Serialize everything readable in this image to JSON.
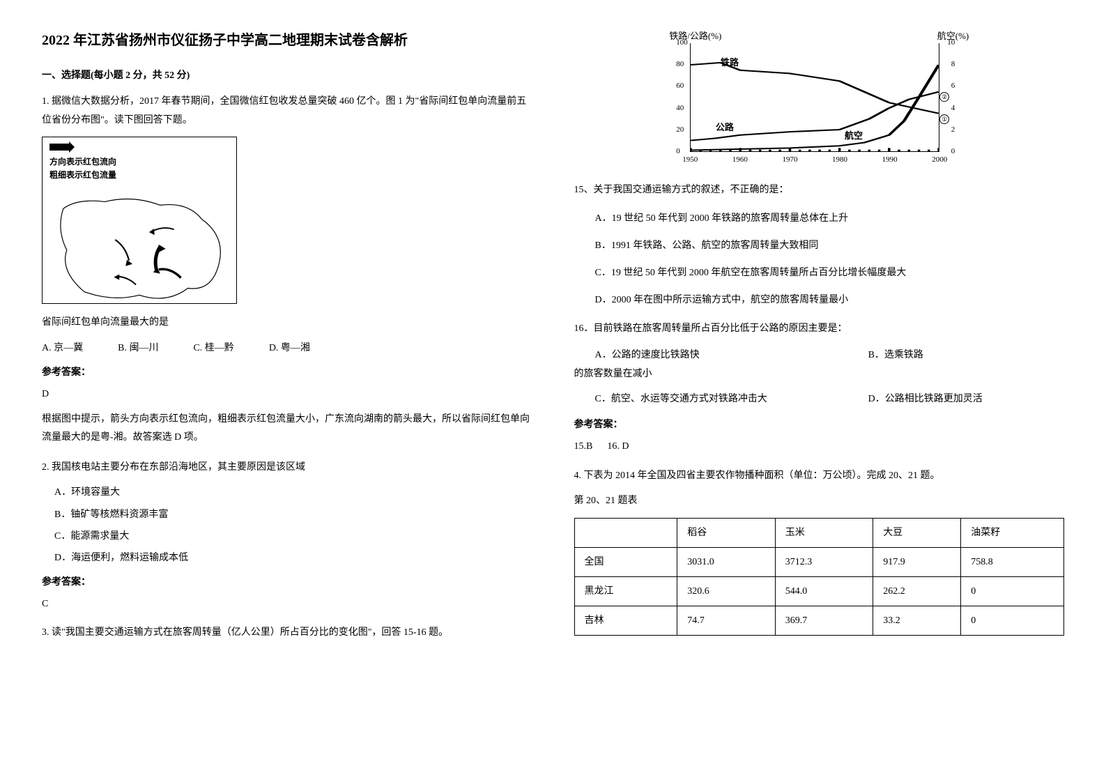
{
  "title": "2022 年江苏省扬州市仪征扬子中学高二地理期末试卷含解析",
  "section1_heading": "一、选择题(每小题 2 分，共 52 分)",
  "q1": {
    "stem": "1. 据微信大数据分析，2017 年春节期间，全国微信红包收发总量突破 460 亿个。图 1 为\"省际间红包单向流量前五位省份分布图\"。读下图回答下题。",
    "map_legend1": "方向表示红包流向",
    "map_legend2": "粗细表示红包流量",
    "sub": "省际间红包单向流量最大的是",
    "options": {
      "A": "A. 京—冀",
      "B": "B. 闽—川",
      "C": "C. 桂—黔",
      "D": "D. 粤—湘"
    },
    "ref": "参考答案：",
    "answer": "D",
    "explain": "根据图中提示，箭头方向表示红包流向，粗细表示红包流量大小，广东流向湖南的箭头最大，所以省际间红包单向流量最大的是粤-湘。故答案选 D 项。"
  },
  "q2": {
    "stem": "2. 我国核电站主要分布在东部沿海地区，其主要原因是该区域",
    "options": {
      "A": "A．环境容量大",
      "B": "B．铀矿等核燃料资源丰富",
      "C": "C．能源需求量大",
      "D": "D．海运便利，燃料运输成本低"
    },
    "ref": "参考答案：",
    "answer": "C"
  },
  "q3": {
    "stem": "3. 读\"我国主要交通运输方式在旅客周转量（亿人公里）所占百分比的变化图\"，回答 15-16 题。"
  },
  "chart": {
    "left_axis_label": "铁路/公路(%)",
    "right_axis_label": "航空(%)",
    "left_ticks": [
      {
        "v": 0,
        "pos": 100
      },
      {
        "v": 20,
        "pos": 80
      },
      {
        "v": 40,
        "pos": 60
      },
      {
        "v": 60,
        "pos": 40
      },
      {
        "v": 80,
        "pos": 20
      },
      {
        "v": 100,
        "pos": 0
      }
    ],
    "right_ticks": [
      {
        "v": 0,
        "pos": 100
      },
      {
        "v": 2,
        "pos": 80
      },
      {
        "v": 4,
        "pos": 60
      },
      {
        "v": 6,
        "pos": 40
      },
      {
        "v": 8,
        "pos": 20
      },
      {
        "v": 10,
        "pos": 0
      }
    ],
    "right_circles": [
      "②",
      "①"
    ],
    "x_ticks": [
      {
        "v": 1950,
        "pos": 0
      },
      {
        "v": 1960,
        "pos": 20
      },
      {
        "v": 1970,
        "pos": 40
      },
      {
        "v": 1980,
        "pos": 60
      },
      {
        "v": 1990,
        "pos": 80
      },
      {
        "v": 2000,
        "pos": 100
      }
    ],
    "series_labels": {
      "rail": "铁路",
      "road": "公路",
      "air": "航空"
    },
    "rail_points": [
      [
        0,
        20
      ],
      [
        12,
        18
      ],
      [
        20,
        25
      ],
      [
        40,
        28
      ],
      [
        60,
        35
      ],
      [
        70,
        45
      ],
      [
        80,
        55
      ],
      [
        90,
        60
      ],
      [
        100,
        65
      ]
    ],
    "road_points": [
      [
        0,
        90
      ],
      [
        10,
        88
      ],
      [
        20,
        85
      ],
      [
        40,
        82
      ],
      [
        60,
        80
      ],
      [
        72,
        70
      ],
      [
        80,
        60
      ],
      [
        88,
        52
      ],
      [
        100,
        45
      ]
    ],
    "air_points": [
      [
        0,
        99
      ],
      [
        20,
        98
      ],
      [
        40,
        97
      ],
      [
        60,
        95
      ],
      [
        70,
        92
      ],
      [
        80,
        85
      ],
      [
        86,
        72
      ],
      [
        92,
        50
      ],
      [
        100,
        20
      ]
    ]
  },
  "q15": {
    "stem": "15、关于我国交通运输方式的叙述，不正确的是：",
    "options": {
      "A": "A．19 世纪 50 年代到 2000 年铁路的旅客周转量总体在上升",
      "B": "B．1991 年铁路、公路、航空的旅客周转量大致相同",
      "C": "C．19 世纪 50 年代到 2000 年航空在旅客周转量所占百分比增长幅度最大",
      "D": "D．2000 年在图中所示运输方式中，航空的旅客周转量最小"
    }
  },
  "q16": {
    "stem": "16．目前铁路在旅客周转量所占百分比低于公路的原因主要是：",
    "A": "A．公路的速度比铁路快",
    "B": "B．选乘铁路",
    "B_cont": "的旅客数量在减小",
    "C": "C．航空、水运等交通方式对铁路冲击大",
    "D": "D．公路相比铁路更加灵活",
    "ref": "参考答案：",
    "answers": "15.B      16. D"
  },
  "q4": {
    "stem": "4. 下表为 2014 年全国及四省主要农作物播种面积（单位：万公顷）。完成 20、21 题。",
    "caption": "第 20、21 题表",
    "table": {
      "columns": [
        "",
        "稻谷",
        "玉米",
        "大豆",
        "油菜籽"
      ],
      "rows": [
        [
          "全国",
          "3031.0",
          "3712.3",
          "917.9",
          "758.8"
        ],
        [
          "黑龙江",
          "320.6",
          "544.0",
          "262.2",
          "0"
        ],
        [
          "吉林",
          "74.7",
          "369.7",
          "33.2",
          "0"
        ]
      ]
    }
  }
}
